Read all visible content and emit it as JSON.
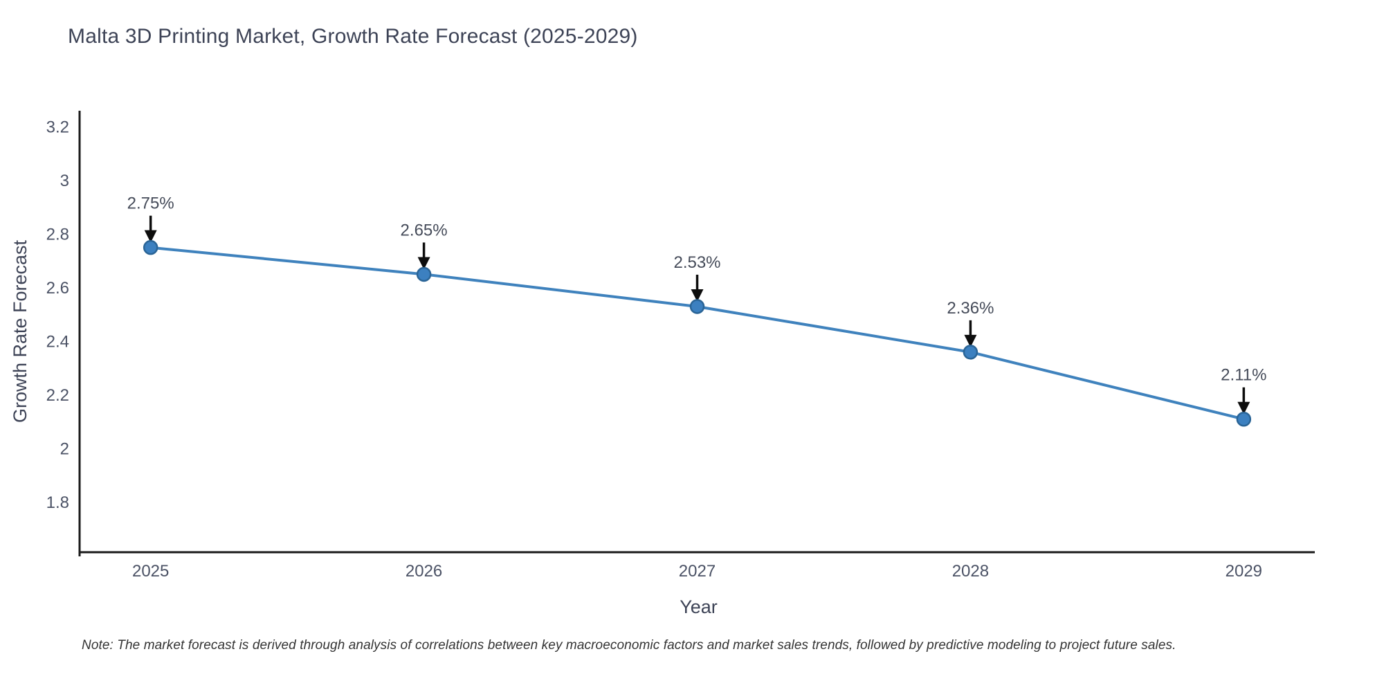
{
  "page": {
    "title": "Malta 3D Printing Market, Growth Rate Forecast (2025-2029)",
    "footnote": "Note: The market forecast is derived through analysis of correlations between key macroeconomic factors and market sales trends, followed by predictive modeling to project future sales."
  },
  "chart_data": {
    "type": "line",
    "title": "Malta 3D Printing Market, Growth Rate Forecast (2025-2029)",
    "xlabel": "Year",
    "ylabel": "Growth Rate Forecast",
    "x": [
      2025,
      2026,
      2027,
      2028,
      2029
    ],
    "values": [
      2.75,
      2.65,
      2.53,
      2.36,
      2.11
    ],
    "point_labels": [
      "2.75%",
      "2.65%",
      "2.53%",
      "2.36%",
      "2.11%"
    ],
    "xticks": [
      2025,
      2026,
      2027,
      2028,
      2029
    ],
    "yticks": [
      1.8,
      2,
      2.2,
      2.4,
      2.6,
      2.8,
      3,
      3.2
    ],
    "xlim": [
      2024.74,
      2029.26
    ],
    "ylim": [
      1.614,
      3.26
    ],
    "grid": false,
    "legend": false,
    "annotation_style": "value label above each point with downward black arrow",
    "colors": {
      "line": "#3f82bd",
      "marker_fill": "#3c80c0",
      "marker_edge": "#2a6496",
      "arrow": "#0d0d0d",
      "axis_line": "#1a1a1a",
      "tick_text": "#4b5265",
      "title_text": "#3d4356",
      "annotation_text": "#454b59",
      "background": "#ffffff"
    }
  }
}
